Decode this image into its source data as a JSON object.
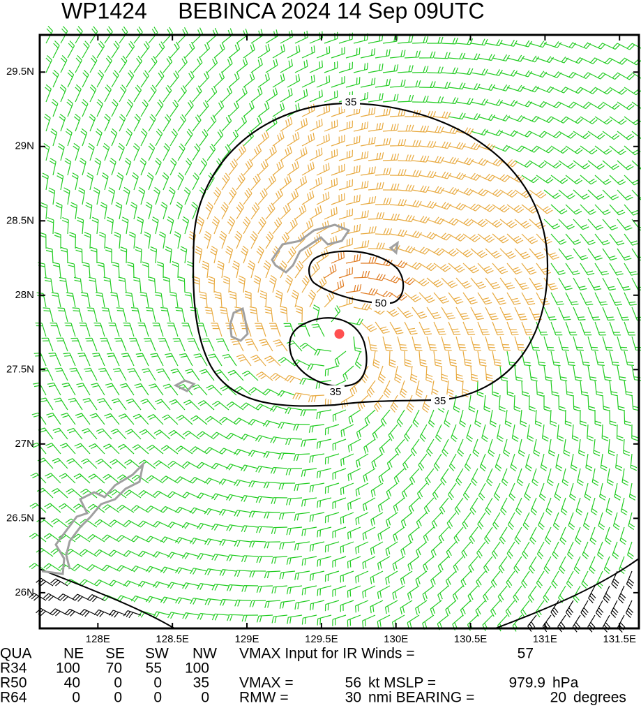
{
  "chart_data": {
    "type": "barb",
    "title": "WP1424     BEBINCA 2024 14 Sep 09UTC",
    "xlim": [
      127.61,
      131.63
    ],
    "ylim": [
      25.76,
      29.75
    ],
    "xticks": [
      {
        "value": 128,
        "label": "128E"
      },
      {
        "value": 128.5,
        "label": "128.5E"
      },
      {
        "value": 129,
        "label": "129E"
      },
      {
        "value": 129.5,
        "label": "129.5E"
      },
      {
        "value": 130,
        "label": "130E"
      },
      {
        "value": 130.5,
        "label": "130.5E"
      },
      {
        "value": 131,
        "label": "131E"
      },
      {
        "value": 131.5,
        "label": "131.5E"
      }
    ],
    "yticks": [
      {
        "value": 26,
        "label": "26N"
      },
      {
        "value": 26.5,
        "label": "26.5N"
      },
      {
        "value": 27,
        "label": "27N"
      },
      {
        "value": 27.5,
        "label": "27.5N"
      },
      {
        "value": 28,
        "label": "28N"
      },
      {
        "value": 28.5,
        "label": "28.5N"
      },
      {
        "value": 29,
        "label": "29N"
      },
      {
        "value": 29.5,
        "label": "29.5N"
      }
    ],
    "contours": [
      {
        "level": 35
      },
      {
        "level": 50
      },
      {
        "level": 35
      }
    ],
    "center": {
      "lon": 129.62,
      "lat": 27.74
    }
  },
  "table": {
    "header": [
      "QUA",
      "NE",
      "SE",
      "SW",
      "NW"
    ],
    "rows": [
      [
        "R34",
        100,
        70,
        55,
        100
      ],
      [
        "R50",
        40,
        0,
        0,
        35
      ],
      [
        "R64",
        0,
        0,
        0,
        0
      ]
    ]
  },
  "info": {
    "vmax_input_label": "VMAX Input for IR Winds =",
    "vmax_input": 57,
    "vmax_label": "VMAX =",
    "vmax": 56,
    "vmax_unit": "kt MSLP =",
    "mslp": 979.9,
    "mslp_unit": "hPa",
    "rmw_label": "RMW =",
    "rmw": 30,
    "rmw_unit": "nmi BEARING =",
    "bearing": 20,
    "bearing_unit": "degrees"
  }
}
